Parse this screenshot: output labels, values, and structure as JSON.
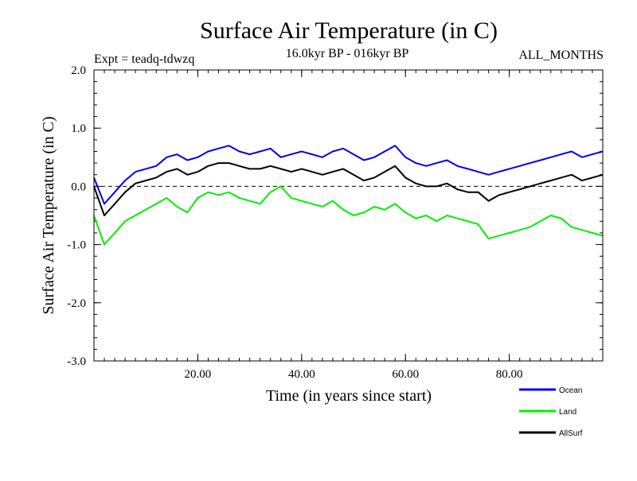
{
  "chart_data": {
    "type": "line",
    "title": "Surface Air Temperature (in C)",
    "subtitle": "16.0kyr BP - 016kyr BP",
    "experiment_label": "Expt = teadq-tdwzq",
    "months_label": "ALL_MONTHS",
    "xlabel": "Time (in years since start)",
    "ylabel": "Surface Air Temperature (in C)",
    "xlim": [
      0,
      98
    ],
    "ylim": [
      -3.0,
      2.0
    ],
    "x_ticks": [
      {
        "value": 20,
        "label": "20.00"
      },
      {
        "value": 40,
        "label": "40.00"
      },
      {
        "value": 60,
        "label": "60.00"
      },
      {
        "value": 80,
        "label": "80.00"
      }
    ],
    "y_ticks": [
      {
        "value": 2.0,
        "label": "2.0"
      },
      {
        "value": 1.0,
        "label": "1.0"
      },
      {
        "value": 0.0,
        "label": "0.0"
      },
      {
        "value": -1.0,
        "label": "-1.0"
      },
      {
        "value": -2.0,
        "label": "-2.0"
      },
      {
        "value": -3.0,
        "label": "-3.0"
      }
    ],
    "x_minor_step": 2,
    "y_minor_step": 0.2,
    "reference_line": 0.0,
    "x": [
      0,
      2,
      4,
      6,
      8,
      10,
      12,
      14,
      16,
      18,
      20,
      22,
      24,
      26,
      28,
      30,
      32,
      34,
      36,
      38,
      40,
      42,
      44,
      46,
      48,
      50,
      52,
      54,
      56,
      58,
      60,
      62,
      64,
      66,
      68,
      70,
      72,
      74,
      76,
      78,
      80,
      82,
      84,
      86,
      88,
      90,
      92,
      94,
      96,
      98
    ],
    "series": [
      {
        "name": "Ocean",
        "color": "#0000ee",
        "values": [
          0.15,
          -0.3,
          -0.1,
          0.1,
          0.25,
          0.3,
          0.35,
          0.5,
          0.55,
          0.45,
          0.5,
          0.6,
          0.65,
          0.7,
          0.6,
          0.55,
          0.6,
          0.65,
          0.5,
          0.55,
          0.6,
          0.55,
          0.5,
          0.6,
          0.65,
          0.55,
          0.45,
          0.5,
          0.6,
          0.7,
          0.5,
          0.4,
          0.35,
          0.4,
          0.45,
          0.35,
          0.3,
          0.25,
          0.2,
          0.25,
          0.3,
          0.35,
          0.4,
          0.45,
          0.5,
          0.55,
          0.6,
          0.5,
          0.55,
          0.6
        ]
      },
      {
        "name": "Land",
        "color": "#00ee00",
        "values": [
          -0.5,
          -1.0,
          -0.8,
          -0.6,
          -0.5,
          -0.4,
          -0.3,
          -0.2,
          -0.35,
          -0.45,
          -0.2,
          -0.1,
          -0.15,
          -0.1,
          -0.2,
          -0.25,
          -0.3,
          -0.1,
          0.0,
          -0.2,
          -0.25,
          -0.3,
          -0.35,
          -0.25,
          -0.4,
          -0.5,
          -0.45,
          -0.35,
          -0.4,
          -0.3,
          -0.45,
          -0.55,
          -0.5,
          -0.6,
          -0.5,
          -0.55,
          -0.6,
          -0.65,
          -0.9,
          -0.85,
          -0.8,
          -0.75,
          -0.7,
          -0.6,
          -0.5,
          -0.55,
          -0.7,
          -0.75,
          -0.8,
          -0.85
        ]
      },
      {
        "name": "AllSurf",
        "color": "#000000",
        "values": [
          0.0,
          -0.5,
          -0.3,
          -0.1,
          0.05,
          0.1,
          0.15,
          0.25,
          0.3,
          0.2,
          0.25,
          0.35,
          0.4,
          0.4,
          0.35,
          0.3,
          0.3,
          0.35,
          0.3,
          0.25,
          0.3,
          0.25,
          0.2,
          0.25,
          0.3,
          0.2,
          0.1,
          0.15,
          0.25,
          0.35,
          0.15,
          0.05,
          0.0,
          0.0,
          0.05,
          -0.05,
          -0.1,
          -0.1,
          -0.25,
          -0.15,
          -0.1,
          -0.05,
          0.0,
          0.05,
          0.1,
          0.15,
          0.2,
          0.1,
          0.15,
          0.2
        ]
      }
    ],
    "legend": [
      {
        "label": "Ocean",
        "color": "#0000ee"
      },
      {
        "label": "Land",
        "color": "#00ee00"
      },
      {
        "label": "AllSurf",
        "color": "#000000"
      }
    ]
  }
}
